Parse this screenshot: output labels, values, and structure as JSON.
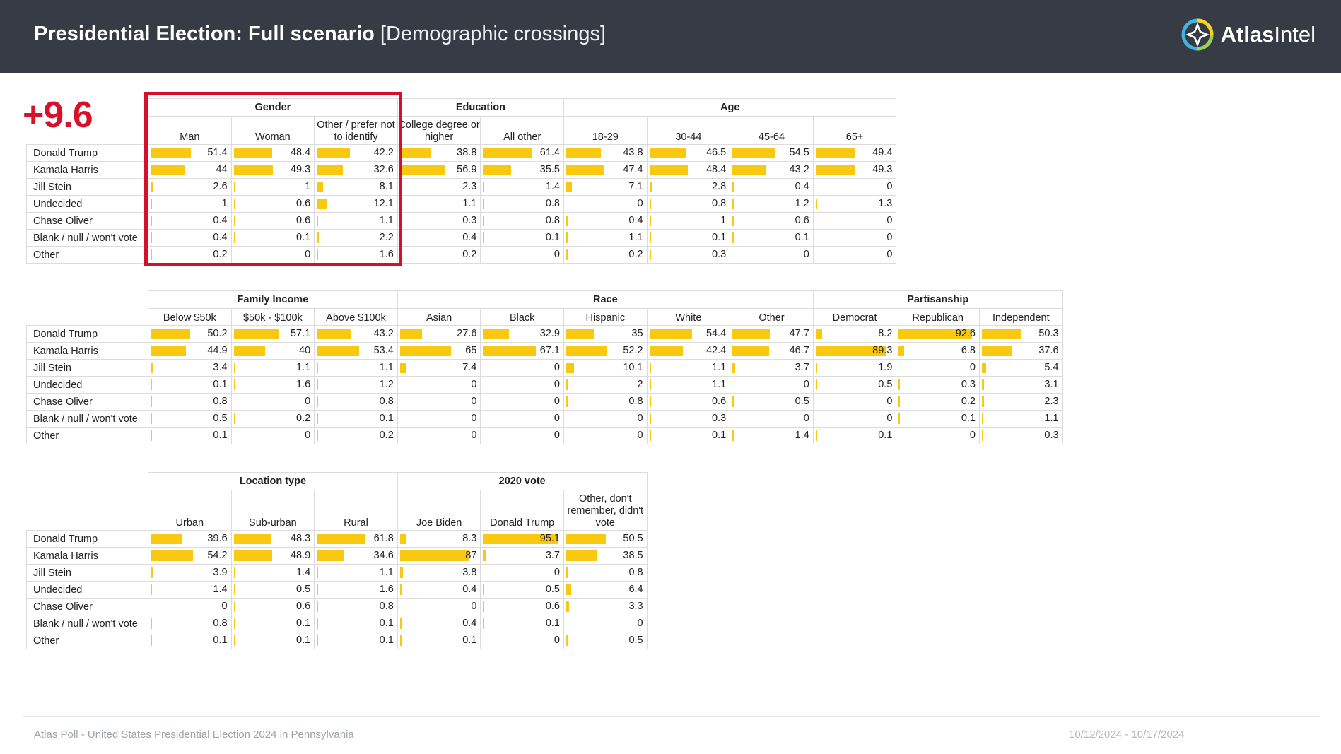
{
  "header": {
    "title_bold": "Presidential Election: Full scenario",
    "title_normal": "[Demographic crossings]",
    "logo_bold": "Atlas",
    "logo_normal": "Intel",
    "logo_icon": "atlas-compass-logo"
  },
  "margin_label": "+9.6",
  "colors": {
    "header_bg": "#363b46",
    "bar": "#f8c910",
    "highlight": "#d6102a",
    "margin": "#d8112b"
  },
  "footer": {
    "left": "Atlas Poll - United States Presidential Election 2024 in Pennsylvania",
    "right": "10/12/2024 - 10/17/2024"
  },
  "chart_data": {
    "type": "table",
    "rows": [
      "Donald Trump",
      "Kamala Harris",
      "Jill Stein",
      "Undecided",
      "Chase Oliver",
      "Blank / null / won't vote",
      "Other"
    ],
    "bar_scale": [
      0,
      100
    ],
    "tables": [
      {
        "groups": [
          {
            "name": "Gender",
            "columns": [
              {
                "label": "Man",
                "values": [
                  51.4,
                  44,
                  2.6,
                  1,
                  0.4,
                  0.4,
                  0.2
                ]
              },
              {
                "label": "Woman",
                "values": [
                  48.4,
                  49.3,
                  1,
                  0.6,
                  0.6,
                  0.1,
                  0
                ]
              },
              {
                "label": "Other / prefer not to identify",
                "values": [
                  42.2,
                  32.6,
                  8.1,
                  12.1,
                  1.1,
                  2.2,
                  1.6
                ]
              }
            ]
          },
          {
            "name": "Education",
            "columns": [
              {
                "label": "College degree or higher",
                "values": [
                  38.8,
                  56.9,
                  2.3,
                  1.1,
                  0.3,
                  0.4,
                  0.2
                ]
              },
              {
                "label": "All other",
                "values": [
                  61.4,
                  35.5,
                  1.4,
                  0.8,
                  0.8,
                  0.1,
                  0
                ]
              }
            ]
          },
          {
            "name": "Age",
            "columns": [
              {
                "label": "18-29",
                "values": [
                  43.8,
                  47.4,
                  7.1,
                  0,
                  0.4,
                  1.1,
                  0.2
                ]
              },
              {
                "label": "30-44",
                "values": [
                  46.5,
                  48.4,
                  2.8,
                  0.8,
                  1,
                  0.1,
                  0.3
                ]
              },
              {
                "label": "45-64",
                "values": [
                  54.5,
                  43.2,
                  0.4,
                  1.2,
                  0.6,
                  0.1,
                  0
                ]
              },
              {
                "label": "65+",
                "values": [
                  49.4,
                  49.3,
                  0,
                  1.3,
                  0,
                  0,
                  0
                ]
              }
            ]
          }
        ]
      },
      {
        "groups": [
          {
            "name": "Family Income",
            "columns": [
              {
                "label": "Below $50k",
                "values": [
                  50.2,
                  44.9,
                  3.4,
                  0.1,
                  0.8,
                  0.5,
                  0.1
                ]
              },
              {
                "label": "$50k - $100k",
                "values": [
                  57.1,
                  40,
                  1.1,
                  1.6,
                  0,
                  0.2,
                  0
                ]
              },
              {
                "label": "Above $100k",
                "values": [
                  43.2,
                  53.4,
                  1.1,
                  1.2,
                  0.8,
                  0.1,
                  0.2
                ]
              }
            ]
          },
          {
            "name": "Race",
            "columns": [
              {
                "label": "Asian",
                "values": [
                  27.6,
                  65,
                  7.4,
                  0,
                  0,
                  0,
                  0
                ]
              },
              {
                "label": "Black",
                "values": [
                  32.9,
                  67.1,
                  0,
                  0,
                  0,
                  0,
                  0
                ]
              },
              {
                "label": "Hispanic",
                "values": [
                  35,
                  52.2,
                  10.1,
                  2,
                  0.8,
                  0,
                  0
                ]
              },
              {
                "label": "White",
                "values": [
                  54.4,
                  42.4,
                  1.1,
                  1.1,
                  0.6,
                  0.3,
                  0.1
                ]
              },
              {
                "label": "Other",
                "values": [
                  47.7,
                  46.7,
                  3.7,
                  0,
                  0.5,
                  0,
                  1.4
                ]
              }
            ]
          },
          {
            "name": "Partisanship",
            "columns": [
              {
                "label": "Democrat",
                "values": [
                  8.2,
                  89.3,
                  1.9,
                  0.5,
                  0,
                  0,
                  0.1
                ]
              },
              {
                "label": "Republican",
                "values": [
                  92.6,
                  6.8,
                  0,
                  0.3,
                  0.2,
                  0.1,
                  0
                ]
              },
              {
                "label": "Independent",
                "values": [
                  50.3,
                  37.6,
                  5.4,
                  3.1,
                  2.3,
                  1.1,
                  0.3
                ]
              }
            ]
          }
        ]
      },
      {
        "groups": [
          {
            "name": "Location type",
            "columns": [
              {
                "label": "Urban",
                "values": [
                  39.6,
                  54.2,
                  3.9,
                  1.4,
                  0,
                  0.8,
                  0.1
                ]
              },
              {
                "label": "Sub-urban",
                "values": [
                  48.3,
                  48.9,
                  1.4,
                  0.5,
                  0.6,
                  0.1,
                  0.1
                ]
              },
              {
                "label": "Rural",
                "values": [
                  61.8,
                  34.6,
                  1.1,
                  1.6,
                  0.8,
                  0.1,
                  0.1
                ]
              }
            ]
          },
          {
            "name": "2020 vote",
            "columns": [
              {
                "label": "Joe Biden",
                "values": [
                  8.3,
                  87,
                  3.8,
                  0.4,
                  0,
                  0.4,
                  0.1
                ]
              },
              {
                "label": "Donald Trump",
                "values": [
                  95.1,
                  3.7,
                  0,
                  0.5,
                  0.6,
                  0.1,
                  0
                ]
              },
              {
                "label": "Other, don't remember, didn't vote",
                "values": [
                  50.5,
                  38.5,
                  0.8,
                  6.4,
                  3.3,
                  0,
                  0.5
                ]
              }
            ]
          }
        ]
      }
    ]
  }
}
